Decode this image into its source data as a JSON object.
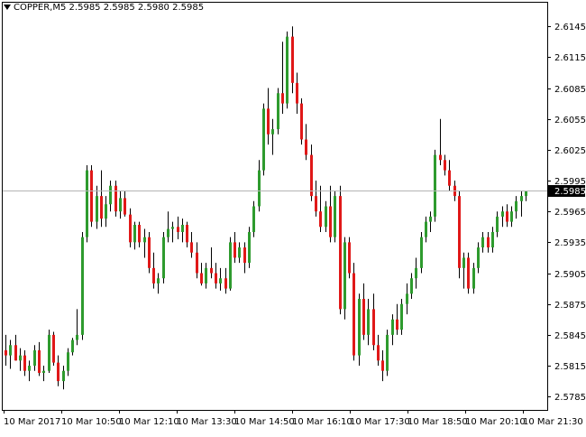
{
  "header": {
    "symbol": "COPPER,M5",
    "open": "2.5985",
    "high": "2.5985",
    "low": "2.5980",
    "close": "2.5985"
  },
  "colors": {
    "bull": "#2e9b2e",
    "bear": "#e01818",
    "wick": "#000000",
    "price_line": "#b4b4b4",
    "price_label_bg": "#000000",
    "price_label_text": "#ffffff"
  },
  "chart_data": {
    "type": "candlestick",
    "timeframe": "M5",
    "ylim": [
      2.5772,
      2.6168
    ],
    "yticks": [
      "2.6145",
      "2.6115",
      "2.6085",
      "2.6055",
      "2.6025",
      "2.5995",
      "2.5965",
      "2.5935",
      "2.5905",
      "2.5875",
      "2.5845",
      "2.5815",
      "2.5785"
    ],
    "current_price": "2.5985",
    "xticks": [
      "10 Mar 2017",
      "10 Mar 10:50",
      "10 Mar 12:10",
      "10 Mar 13:30",
      "10 Mar 14:50",
      "10 Mar 16:10",
      "10 Mar 17:30",
      "10 Mar 18:50",
      "10 Mar 20:10",
      "10 Mar 21:30"
    ],
    "candles": [
      [
        2.583,
        2.5845,
        2.5815,
        2.5825
      ],
      [
        2.5825,
        2.584,
        2.5812,
        2.5835
      ],
      [
        2.5835,
        2.5845,
        2.582,
        2.582
      ],
      [
        2.582,
        2.5832,
        2.581,
        2.5825
      ],
      [
        2.5825,
        2.583,
        2.5805,
        2.581
      ],
      [
        2.581,
        2.582,
        2.58,
        2.5815
      ],
      [
        2.5815,
        2.5835,
        2.581,
        2.583
      ],
      [
        2.583,
        2.5838,
        2.5805,
        2.5808
      ],
      [
        2.5808,
        2.5815,
        2.58,
        2.581
      ],
      [
        2.581,
        2.585,
        2.5808,
        2.5845
      ],
      [
        2.5845,
        2.5848,
        2.5815,
        2.5818
      ],
      [
        2.5818,
        2.5825,
        2.5795,
        2.58
      ],
      [
        2.58,
        2.5815,
        2.5792,
        2.581
      ],
      [
        2.581,
        2.5832,
        2.5805,
        2.5828
      ],
      [
        2.5828,
        2.5842,
        2.5825,
        2.584
      ],
      [
        2.584,
        2.587,
        2.5835,
        2.5845
      ],
      [
        2.5845,
        2.5945,
        2.584,
        2.594
      ],
      [
        2.594,
        2.601,
        2.5935,
        2.6005
      ],
      [
        2.6005,
        2.601,
        2.595,
        2.5955
      ],
      [
        2.5955,
        2.599,
        2.5948,
        2.598
      ],
      [
        2.598,
        2.6005,
        2.595,
        2.5958
      ],
      [
        2.5958,
        2.598,
        2.595,
        2.5972
      ],
      [
        2.5972,
        2.5995,
        2.5965,
        2.599
      ],
      [
        2.599,
        2.5995,
        2.596,
        2.5965
      ],
      [
        2.5965,
        2.5985,
        2.5958,
        2.5978
      ],
      [
        2.5978,
        2.5985,
        2.596,
        2.5962
      ],
      [
        2.5962,
        2.5968,
        2.593,
        2.5935
      ],
      [
        2.5935,
        2.5955,
        2.5928,
        2.5952
      ],
      [
        2.5952,
        2.5955,
        2.593,
        2.5935
      ],
      [
        2.5935,
        2.5948,
        2.592,
        2.594
      ],
      [
        2.594,
        2.5945,
        2.5905,
        2.591
      ],
      [
        2.591,
        2.5925,
        2.589,
        2.5895
      ],
      [
        2.5895,
        2.5905,
        2.5885,
        2.59
      ],
      [
        2.59,
        2.5945,
        2.5895,
        2.594
      ],
      [
        2.594,
        2.5965,
        2.5935,
        2.5948
      ],
      [
        2.5948,
        2.5955,
        2.5935,
        2.595
      ],
      [
        2.595,
        2.596,
        2.5938,
        2.5945
      ],
      [
        2.5945,
        2.5958,
        2.5935,
        2.5952
      ],
      [
        2.5952,
        2.5955,
        2.593,
        2.5935
      ],
      [
        2.5935,
        2.5945,
        2.592,
        2.5925
      ],
      [
        2.5925,
        2.5935,
        2.59,
        2.5905
      ],
      [
        2.5905,
        2.5915,
        2.5893,
        2.5895
      ],
      [
        2.5895,
        2.5915,
        2.589,
        2.591
      ],
      [
        2.591,
        2.593,
        2.59,
        2.5905
      ],
      [
        2.5905,
        2.5915,
        2.589,
        2.5895
      ],
      [
        2.5895,
        2.591,
        2.5888,
        2.59
      ],
      [
        2.59,
        2.591,
        2.5885,
        2.589
      ],
      [
        2.589,
        2.594,
        2.5888,
        2.5935
      ],
      [
        2.5935,
        2.5945,
        2.5915,
        2.592
      ],
      [
        2.592,
        2.5935,
        2.5915,
        2.593
      ],
      [
        2.593,
        2.5935,
        2.5905,
        2.5915
      ],
      [
        2.5915,
        2.595,
        2.591,
        2.5945
      ],
      [
        2.5945,
        2.5975,
        2.594,
        2.597
      ],
      [
        2.597,
        2.6015,
        2.5965,
        2.6005
      ],
      [
        2.6005,
        2.607,
        2.6,
        2.6065
      ],
      [
        2.6065,
        2.6085,
        2.603,
        2.604
      ],
      [
        2.604,
        2.6055,
        2.602,
        2.6045
      ],
      [
        2.6045,
        2.6085,
        2.604,
        2.608
      ],
      [
        2.608,
        2.613,
        2.606,
        2.607
      ],
      [
        2.607,
        2.614,
        2.6065,
        2.6135
      ],
      [
        2.6135,
        2.6145,
        2.608,
        2.609
      ],
      [
        2.609,
        2.61,
        2.606,
        2.607
      ],
      [
        2.607,
        2.6075,
        2.603,
        2.6035
      ],
      [
        2.6035,
        2.605,
        2.6015,
        2.602
      ],
      [
        2.602,
        2.603,
        2.5975,
        2.598
      ],
      [
        2.598,
        2.5995,
        2.596,
        2.5965
      ],
      [
        2.5965,
        2.599,
        2.5945,
        2.595
      ],
      [
        2.595,
        2.5975,
        2.5945,
        2.597
      ],
      [
        2.597,
        2.599,
        2.5935,
        2.594
      ],
      [
        2.594,
        2.5985,
        2.5935,
        2.598
      ],
      [
        2.598,
        2.599,
        2.5865,
        2.587
      ],
      [
        2.587,
        2.594,
        2.586,
        2.5935
      ],
      [
        2.5935,
        2.594,
        2.59,
        2.5905
      ],
      [
        2.5905,
        2.5915,
        2.582,
        2.5825
      ],
      [
        2.5825,
        2.5885,
        2.5815,
        2.588
      ],
      [
        2.588,
        2.5895,
        2.584,
        2.5845
      ],
      [
        2.5845,
        2.588,
        2.5835,
        2.587
      ],
      [
        2.587,
        2.5885,
        2.583,
        2.5835
      ],
      [
        2.5835,
        2.5845,
        2.5815,
        2.582
      ],
      [
        2.582,
        2.583,
        2.58,
        2.581
      ],
      [
        2.581,
        2.585,
        2.5805,
        2.5845
      ],
      [
        2.5845,
        2.5865,
        2.5835,
        2.586
      ],
      [
        2.586,
        2.5875,
        2.5845,
        2.585
      ],
      [
        2.585,
        2.588,
        2.5845,
        2.5875
      ],
      [
        2.5875,
        2.5895,
        2.5865,
        2.5885
      ],
      [
        2.5885,
        2.5905,
        2.588,
        2.59
      ],
      [
        2.59,
        2.592,
        2.589,
        2.591
      ],
      [
        2.591,
        2.5945,
        2.5905,
        2.594
      ],
      [
        2.594,
        2.596,
        2.5935,
        2.5955
      ],
      [
        2.5955,
        2.5965,
        2.5945,
        2.596
      ],
      [
        2.596,
        2.6025,
        2.5955,
        2.602
      ],
      [
        2.602,
        2.6055,
        2.601,
        2.6015
      ],
      [
        2.6015,
        2.602,
        2.6,
        2.6005
      ],
      [
        2.6005,
        2.6015,
        2.5985,
        2.599
      ],
      [
        2.599,
        2.5995,
        2.5975,
        2.598
      ],
      [
        2.598,
        2.5985,
        2.59,
        2.591
      ],
      [
        2.591,
        2.5925,
        2.589,
        2.592
      ],
      [
        2.592,
        2.5925,
        2.5885,
        2.589
      ],
      [
        2.589,
        2.5915,
        2.5885,
        2.591
      ],
      [
        2.591,
        2.5935,
        2.5905,
        2.593
      ],
      [
        2.593,
        2.5945,
        2.5925,
        2.594
      ],
      [
        2.594,
        2.5945,
        2.5925,
        2.593
      ],
      [
        2.593,
        2.595,
        2.5925,
        2.5945
      ],
      [
        2.5945,
        2.5965,
        2.594,
        2.596
      ],
      [
        2.596,
        2.597,
        2.595,
        2.5965
      ],
      [
        2.5965,
        2.5972,
        2.595,
        2.5955
      ],
      [
        2.5955,
        2.597,
        2.595,
        2.5965
      ],
      [
        2.5965,
        2.598,
        2.5958,
        2.5975
      ],
      [
        2.5975,
        2.5985,
        2.596,
        2.598
      ],
      [
        2.598,
        2.5985,
        2.5975,
        2.5985
      ]
    ]
  }
}
